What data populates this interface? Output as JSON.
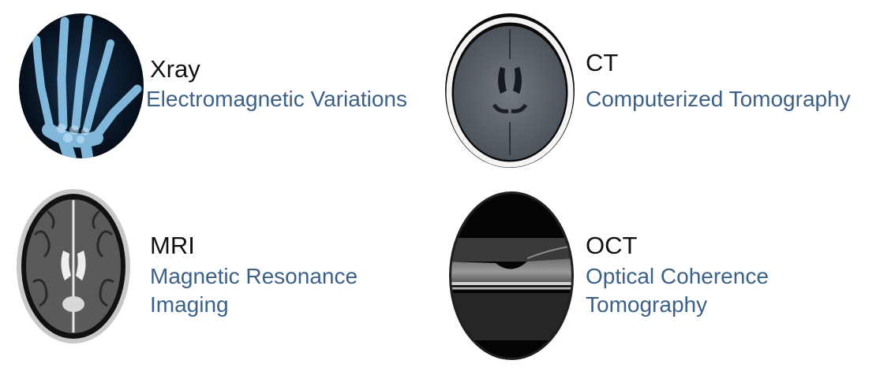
{
  "items": [
    {
      "title": "Xray",
      "subtitle_lines": [
        "Electromagnetic Variations"
      ],
      "icon": "xray-hand-image"
    },
    {
      "title": "CT",
      "subtitle_lines": [
        "Computerized Tomography"
      ],
      "icon": "ct-brain-scan-image"
    },
    {
      "title": "MRI",
      "subtitle_lines": [
        "Magnetic Resonance",
        "Imaging"
      ],
      "icon": "mri-brain-scan-image"
    },
    {
      "title": "OCT",
      "subtitle_lines": [
        "Optical Coherence",
        "Tomography"
      ],
      "icon": "oct-retina-scan-image"
    }
  ],
  "colors": {
    "title": "#111111",
    "subtitle": "#3c6189"
  }
}
